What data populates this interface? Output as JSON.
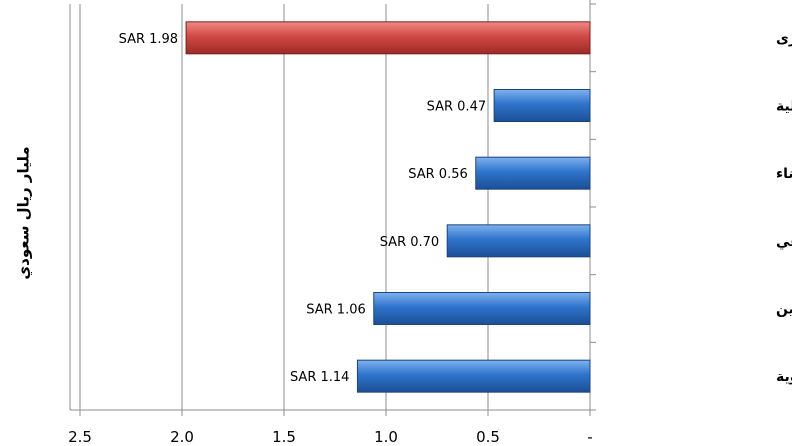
{
  "chart_data": {
    "type": "bar",
    "orientation": "horizontal",
    "x_reversed": true,
    "categories": [
      "قطاعات اخرى",
      "المصارف والخدمات المالية",
      "التشييد والبناء",
      "الأستثمار الصناعي",
      "التأمين",
      "الصناعات والبتروكيماوية"
    ],
    "values": [
      1.98,
      0.47,
      0.56,
      0.7,
      1.06,
      1.14
    ],
    "data_labels": [
      "SAR 1.98",
      "SAR 0.47",
      "SAR 0.56",
      "SAR 0.70",
      "SAR 1.06",
      "SAR 1.14"
    ],
    "bar_colors": [
      "#c0392b",
      "#2a6fc9",
      "#2a6fc9",
      "#2a6fc9",
      "#2a6fc9",
      "#2a6fc9"
    ],
    "x_ticks": [
      2.5,
      2.0,
      1.5,
      1.0,
      0.5,
      0
    ],
    "x_tick_labels": [
      "2.5",
      "2.0",
      "1.5",
      "1.0",
      "0.5",
      "-"
    ],
    "xlim": [
      0,
      2.5
    ],
    "ylabel": "مليار ريال سعودي",
    "grid": true
  }
}
